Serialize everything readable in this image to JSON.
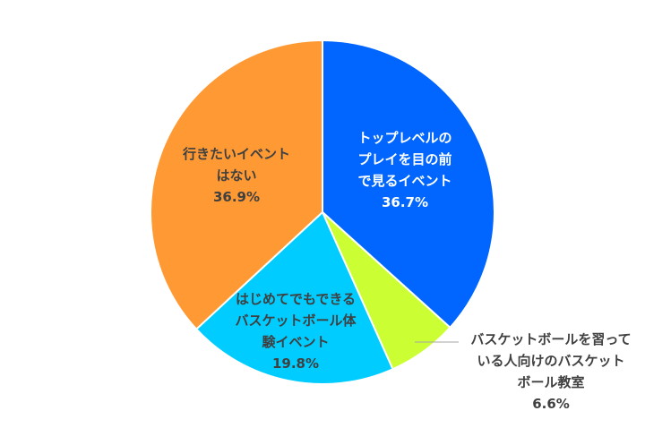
{
  "chart_data": {
    "type": "pie",
    "start_angle_deg": 0,
    "direction": "clockwise",
    "slices": [
      {
        "lines": [
          "トップレベルの",
          "プレイを目の前",
          "で見るイベント"
        ],
        "pct_label": "36.7%",
        "value": 36.7,
        "color": "#0066FF",
        "label_color": "#ffffff"
      },
      {
        "lines": [
          "バスケットボールを習って",
          "いる人向けのバスケット",
          "ボール教室"
        ],
        "pct_label": "6.6%",
        "value": 6.6,
        "color": "#CCFF33",
        "label_color": "#404040"
      },
      {
        "lines": [
          "はじめてでもできる",
          "バスケットボール体",
          "験イベント"
        ],
        "pct_label": "19.8%",
        "value": 19.8,
        "color": "#00CCFF",
        "label_color": "#404040"
      },
      {
        "lines": [
          "行きたいイベント",
          "はない"
        ],
        "pct_label": "36.9%",
        "value": 36.9,
        "color": "#FF9933",
        "label_color": "#404040"
      }
    ]
  }
}
